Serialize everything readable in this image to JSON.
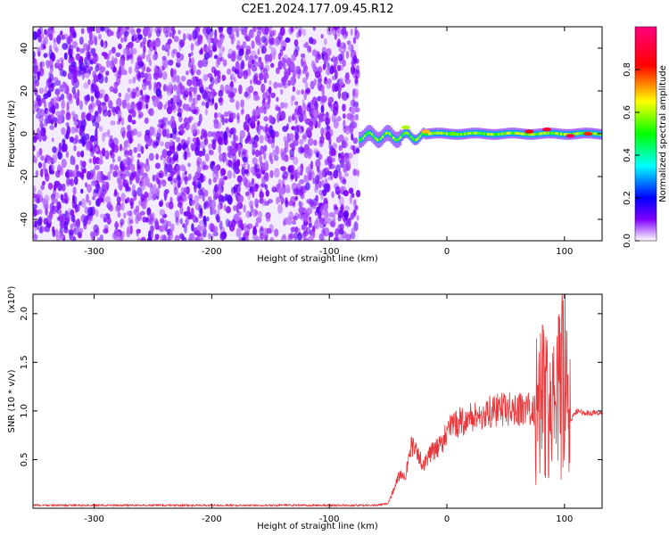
{
  "title": "C2E1.2024.177.09.45.R12",
  "chart_data": [
    {
      "type": "heatmap",
      "xlabel": "Height of straight line (km)",
      "ylabel": "Frequency (Hz)",
      "xlim": [
        -352,
        132
      ],
      "ylim": [
        -50,
        50
      ],
      "xticks": [
        -300,
        -200,
        -100,
        0,
        100
      ],
      "xtick_labels": [
        "-300",
        "-200",
        "-100",
        "0",
        "100"
      ],
      "yticks": [
        -40,
        -20,
        0,
        20,
        40
      ],
      "ytick_labels": [
        "-40",
        "-20",
        "0",
        "20",
        "40"
      ],
      "noise_region_x": [
        -352,
        -75
      ],
      "signal_start_x": -75,
      "signal_center_frequency": 0,
      "hotspots": [
        {
          "x": -35,
          "y": 3,
          "level": 0.6
        },
        {
          "x": -18,
          "y": 1,
          "level": 0.7
        },
        {
          "x": 5,
          "y": 0,
          "level": 0.55
        },
        {
          "x": 70,
          "y": 1,
          "level": 0.85
        },
        {
          "x": 85,
          "y": 2,
          "level": 0.9
        },
        {
          "x": 105,
          "y": -1,
          "level": 0.95
        },
        {
          "x": 120,
          "y": 0,
          "level": 0.8
        }
      ],
      "colorbar": {
        "label": "Normalized spectral amplitude",
        "range": [
          0,
          1
        ],
        "ticks": [
          "0.0",
          "0.2",
          "0.4",
          "0.6",
          "0.8"
        ],
        "tick_values": [
          0.0,
          0.2,
          0.4,
          0.6,
          0.8
        ],
        "colors": [
          "#ffffff",
          "#8000ff",
          "#0000ff",
          "#00ffff",
          "#00ff00",
          "#ffff00",
          "#ff0000",
          "#ff0080"
        ]
      },
      "grid": false
    },
    {
      "type": "line",
      "xlabel": "Height of straight line (km)",
      "ylabel": "SNR (10 * v/v)",
      "y_multiplier": "(x10⁴)",
      "xlim": [
        -352,
        132
      ],
      "ylim": [
        0,
        2.2
      ],
      "xticks": [
        -300,
        -200,
        -100,
        0,
        100
      ],
      "xtick_labels": [
        "-300",
        "-200",
        "-100",
        "0",
        "100"
      ],
      "yticks": [
        0.5,
        1.0,
        1.5,
        2.0
      ],
      "ytick_labels": [
        "0.5",
        "1.0",
        "1.5",
        "2.0"
      ],
      "color": "#e8383b",
      "series": [
        {
          "x": [
            -352,
            -300,
            -250,
            -200,
            -150,
            -100,
            -60,
            -50,
            -45,
            -40,
            -35,
            -30,
            -25,
            -20,
            -15,
            -10,
            -5,
            0,
            10,
            20,
            30,
            40,
            50,
            60,
            70,
            75,
            80,
            85,
            90,
            95,
            100,
            105,
            110,
            120,
            132
          ],
          "y": [
            0.03,
            0.03,
            0.03,
            0.03,
            0.03,
            0.03,
            0.03,
            0.05,
            0.2,
            0.35,
            0.35,
            0.65,
            0.55,
            0.45,
            0.55,
            0.6,
            0.65,
            0.8,
            0.88,
            0.93,
            0.96,
            1.0,
            1.02,
            1.02,
            1.02,
            1.0,
            1.3,
            1.0,
            0.9,
            1.2,
            1.3,
            0.9,
            1.0,
            0.98,
            0.98
          ]
        }
      ],
      "grid": false
    }
  ]
}
